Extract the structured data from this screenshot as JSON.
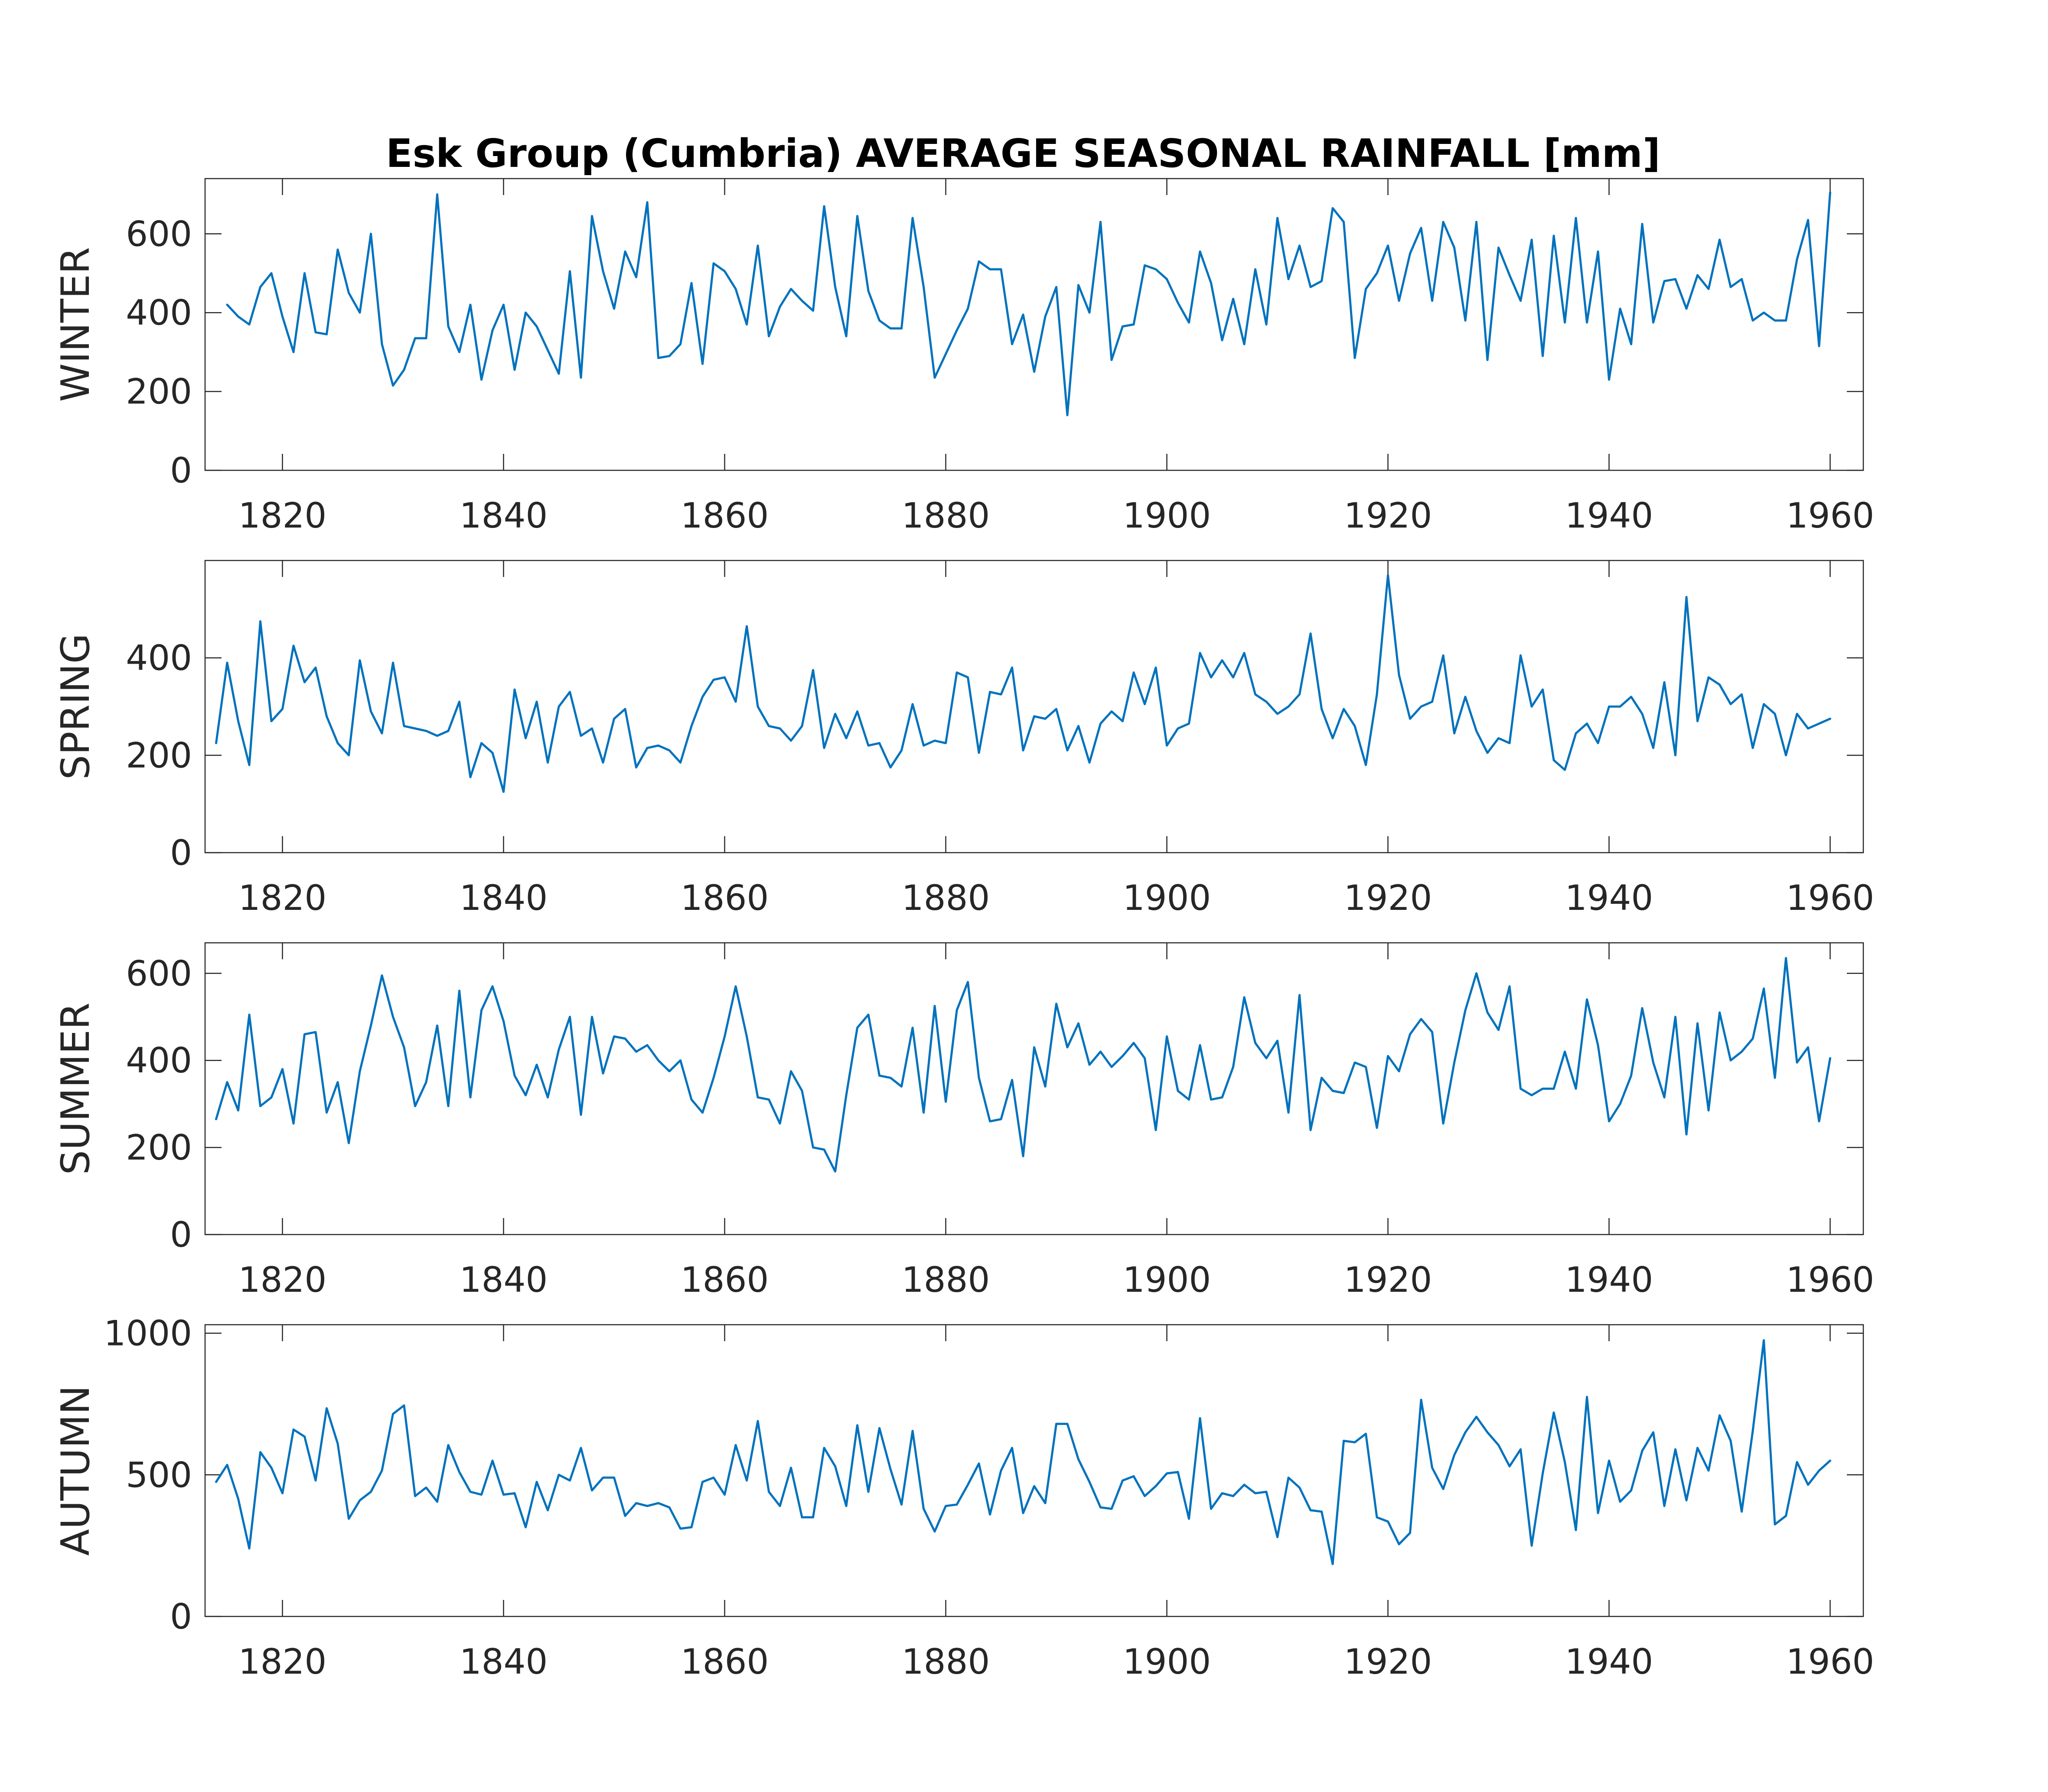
{
  "title": "Esk Group (Cumbria) AVERAGE SEASONAL RAINFALL [mm]",
  "colors": {
    "series": "#0072BD",
    "axes": "#262626",
    "background": "#ffffff"
  },
  "chart_data": [
    {
      "type": "line",
      "ylabel": "WINTER",
      "xlim": [
        1813,
        1963
      ],
      "ylim": [
        0,
        740
      ],
      "xticks": [
        "1820",
        "1840",
        "1860",
        "1880",
        "1900",
        "1920",
        "1940",
        "1960"
      ],
      "yticks": [
        "0",
        "200",
        "400",
        "600"
      ],
      "grid": false,
      "x_start": 1815,
      "values": [
        420,
        390,
        370,
        465,
        500,
        390,
        300,
        500,
        350,
        345,
        560,
        450,
        400,
        600,
        320,
        215,
        255,
        335,
        335,
        700,
        365,
        300,
        420,
        230,
        355,
        420,
        255,
        400,
        365,
        305,
        245,
        505,
        235,
        645,
        505,
        410,
        555,
        490,
        680,
        285,
        290,
        320,
        475,
        270,
        525,
        505,
        460,
        370,
        570,
        340,
        415,
        460,
        430,
        405,
        670,
        465,
        340,
        645,
        455,
        380,
        360,
        360,
        640,
        465,
        235,
        295,
        355,
        410,
        530,
        510,
        510,
        320,
        395,
        250,
        390,
        465,
        140,
        470,
        400,
        630,
        280,
        365,
        370,
        520,
        510,
        485,
        425,
        375,
        555,
        475,
        330,
        435,
        320,
        510,
        370,
        640,
        485,
        570,
        465,
        480,
        665,
        630,
        285,
        460,
        500,
        570,
        430,
        550,
        615,
        430,
        630,
        565,
        380,
        630,
        280,
        565,
        495,
        430,
        585,
        290,
        595,
        375,
        640,
        375,
        555,
        230,
        410,
        320,
        625,
        375,
        480,
        485,
        410,
        495,
        460,
        585,
        465,
        485,
        380,
        400,
        380,
        380,
        535,
        635,
        315,
        705
      ]
    },
    {
      "type": "line",
      "ylabel": "SPRING",
      "xlim": [
        1813,
        1963
      ],
      "ylim": [
        0,
        600
      ],
      "xticks": [
        "1820",
        "1840",
        "1860",
        "1880",
        "1900",
        "1920",
        "1940",
        "1960"
      ],
      "yticks": [
        "0",
        "200",
        "400"
      ],
      "grid": false,
      "x_start": 1814,
      "values": [
        225,
        390,
        270,
        180,
        475,
        270,
        295,
        425,
        350,
        380,
        280,
        225,
        200,
        395,
        290,
        245,
        390,
        260,
        255,
        250,
        240,
        250,
        310,
        155,
        225,
        205,
        125,
        335,
        235,
        310,
        185,
        300,
        330,
        240,
        255,
        185,
        275,
        295,
        175,
        215,
        220,
        210,
        185,
        260,
        320,
        355,
        360,
        310,
        465,
        300,
        260,
        255,
        230,
        260,
        375,
        215,
        285,
        235,
        290,
        220,
        225,
        175,
        210,
        305,
        220,
        230,
        225,
        370,
        360,
        205,
        330,
        325,
        380,
        210,
        280,
        275,
        295,
        210,
        260,
        185,
        265,
        290,
        270,
        370,
        305,
        380,
        220,
        255,
        265,
        410,
        360,
        395,
        360,
        410,
        325,
        310,
        285,
        300,
        325,
        450,
        295,
        235,
        295,
        260,
        180,
        325,
        570,
        365,
        275,
        300,
        310,
        405,
        245,
        320,
        250,
        205,
        235,
        225,
        405,
        300,
        335,
        190,
        170,
        245,
        265,
        225,
        300,
        300,
        320,
        285,
        215,
        350,
        200,
        525,
        270,
        360,
        345,
        305,
        325,
        215,
        305,
        285,
        200,
        285,
        255,
        265,
        275
      ]
    },
    {
      "type": "line",
      "ylabel": "SUMMER",
      "xlim": [
        1813,
        1963
      ],
      "ylim": [
        0,
        670
      ],
      "xticks": [
        "1820",
        "1840",
        "1860",
        "1880",
        "1900",
        "1920",
        "1940",
        "1960"
      ],
      "yticks": [
        "0",
        "200",
        "400",
        "600"
      ],
      "grid": false,
      "x_start": 1814,
      "values": [
        265,
        350,
        285,
        505,
        295,
        315,
        380,
        255,
        460,
        465,
        280,
        350,
        210,
        375,
        480,
        595,
        500,
        430,
        295,
        350,
        480,
        295,
        560,
        315,
        515,
        570,
        490,
        365,
        320,
        390,
        315,
        425,
        500,
        275,
        500,
        370,
        455,
        450,
        420,
        435,
        400,
        375,
        400,
        310,
        280,
        360,
        455,
        570,
        455,
        315,
        310,
        255,
        375,
        330,
        200,
        195,
        145,
        320,
        475,
        505,
        365,
        360,
        340,
        475,
        280,
        525,
        305,
        515,
        580,
        360,
        260,
        265,
        355,
        180,
        430,
        340,
        530,
        430,
        485,
        390,
        420,
        385,
        410,
        440,
        405,
        240,
        455,
        330,
        310,
        435,
        310,
        315,
        385,
        545,
        440,
        405,
        445,
        280,
        550,
        240,
        360,
        330,
        325,
        395,
        385,
        245,
        410,
        375,
        460,
        495,
        465,
        255,
        395,
        515,
        600,
        510,
        470,
        570,
        335,
        320,
        335,
        335,
        420,
        335,
        540,
        435,
        260,
        300,
        365,
        520,
        395,
        315,
        500,
        230,
        485,
        285,
        510,
        400,
        420,
        450,
        565,
        360,
        635,
        395,
        430,
        260,
        405
      ]
    },
    {
      "type": "line",
      "ylabel": "AUTUMN",
      "xlim": [
        1813,
        1963
      ],
      "ylim": [
        0,
        1030
      ],
      "xticks": [
        "1820",
        "1840",
        "1860",
        "1880",
        "1900",
        "1920",
        "1940",
        "1960"
      ],
      "yticks": [
        "0",
        "500",
        "1000"
      ],
      "grid": false,
      "x_start": 1814,
      "values": [
        475,
        535,
        415,
        240,
        580,
        525,
        435,
        660,
        635,
        480,
        735,
        610,
        345,
        410,
        440,
        515,
        715,
        745,
        425,
        455,
        405,
        605,
        510,
        440,
        430,
        550,
        430,
        435,
        315,
        475,
        375,
        500,
        480,
        595,
        445,
        490,
        490,
        355,
        400,
        390,
        400,
        385,
        310,
        315,
        475,
        490,
        430,
        605,
        480,
        690,
        440,
        390,
        525,
        350,
        350,
        595,
        530,
        390,
        675,
        440,
        665,
        520,
        395,
        655,
        380,
        300,
        390,
        395,
        465,
        540,
        360,
        515,
        595,
        365,
        460,
        400,
        680,
        680,
        555,
        475,
        385,
        380,
        480,
        495,
        425,
        460,
        505,
        510,
        345,
        700,
        380,
        435,
        425,
        465,
        435,
        440,
        280,
        490,
        455,
        375,
        370,
        185,
        620,
        615,
        645,
        350,
        335,
        255,
        295,
        765,
        525,
        450,
        570,
        650,
        705,
        650,
        605,
        530,
        590,
        250,
        505,
        720,
        545,
        305,
        775,
        365,
        550,
        405,
        445,
        585,
        650,
        390,
        590,
        410,
        595,
        515,
        710,
        620,
        370,
        655,
        975,
        325,
        355,
        545,
        465,
        515,
        550
      ]
    }
  ]
}
